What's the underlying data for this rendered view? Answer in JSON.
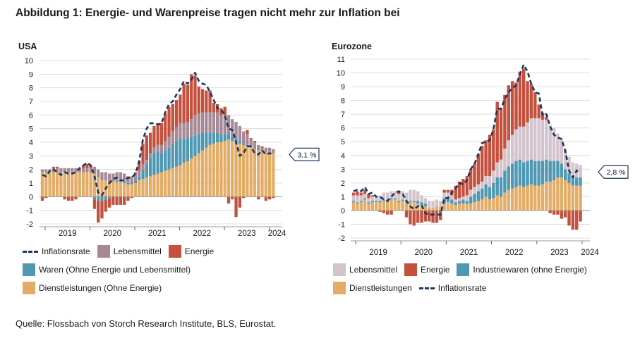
{
  "title": "Abbildung 1: Energie- und Warenpreise tragen nicht mehr zur Inflation bei",
  "source": "Quelle: Flossbach von Storch Research Institute, BLS, Eurostat.",
  "colors": {
    "food": "#a58a96",
    "food_ez": "#d3c3cc",
    "energy": "#c4513e",
    "goods": "#4f98b3",
    "services": "#e3ad67",
    "line": "#1c355e"
  },
  "chart_data": [
    {
      "id": "usa",
      "type": "bar",
      "title": "USA",
      "stacked": true,
      "ylim": [
        -2,
        10
      ],
      "yticks": [
        "-2",
        "-1",
        "0",
        "1",
        "2",
        "3",
        "4",
        "5",
        "6",
        "7",
        "8",
        "9",
        "10"
      ],
      "xticks": [
        "2019",
        "2020",
        "2021",
        "2022",
        "2023",
        "2024"
      ],
      "start": "2019-01",
      "callout": "3,1 %",
      "series": [
        {
          "name": "Dienstleistungen (Ohne Energie)",
          "key": "services",
          "values": [
            1.8,
            1.8,
            1.8,
            1.8,
            1.8,
            1.8,
            1.8,
            1.8,
            1.8,
            1.8,
            1.8,
            1.8,
            1.8,
            1.8,
            1.7,
            1.4,
            1.2,
            1.2,
            1.1,
            1.1,
            1.1,
            1.1,
            1.0,
            0.9,
            0.9,
            1.0,
            1.2,
            1.3,
            1.4,
            1.5,
            1.6,
            1.7,
            1.8,
            1.9,
            2.0,
            2.1,
            2.2,
            2.3,
            2.5,
            2.6,
            2.8,
            3.0,
            3.2,
            3.4,
            3.6,
            3.8,
            3.9,
            4.0,
            4.0,
            4.1,
            4.2,
            4.1,
            4.0,
            3.9,
            3.8,
            3.7,
            3.6,
            3.5,
            3.4,
            3.3,
            3.3,
            3.3,
            3.2
          ]
        },
        {
          "name": "Waren (Ohne Energie und Lebensmittel)",
          "key": "goods",
          "values": [
            0.0,
            0.0,
            0.0,
            0.0,
            0.0,
            0.0,
            0.0,
            0.0,
            0.0,
            0.0,
            0.0,
            0.0,
            0.0,
            0.0,
            -0.2,
            -0.3,
            -0.3,
            -0.2,
            -0.1,
            0.0,
            0.1,
            0.1,
            0.1,
            0.1,
            0.1,
            0.2,
            0.3,
            0.7,
            1.0,
            1.4,
            1.6,
            1.6,
            1.4,
            1.5,
            1.6,
            1.8,
            1.9,
            2.0,
            1.8,
            1.7,
            1.6,
            1.5,
            1.4,
            1.3,
            1.1,
            0.9,
            0.8,
            0.7,
            0.6,
            0.5,
            0.4,
            0.3,
            0.3,
            0.2,
            0.1,
            0.1,
            0.0,
            0.0,
            0.0,
            0.0,
            0.0,
            0.0,
            0.0
          ]
        },
        {
          "name": "Lebensmittel",
          "key": "food",
          "values": [
            0.2,
            0.2,
            0.2,
            0.3,
            0.3,
            0.3,
            0.3,
            0.3,
            0.3,
            0.3,
            0.3,
            0.3,
            0.3,
            0.3,
            0.5,
            0.6,
            0.6,
            0.6,
            0.6,
            0.6,
            0.6,
            0.6,
            0.6,
            0.5,
            0.5,
            0.5,
            0.5,
            0.4,
            0.3,
            0.3,
            0.4,
            0.5,
            0.6,
            0.7,
            0.8,
            0.9,
            1.0,
            1.1,
            1.1,
            1.2,
            1.3,
            1.5,
            1.5,
            1.5,
            1.5,
            1.5,
            1.5,
            1.5,
            1.4,
            1.4,
            1.4,
            1.3,
            1.2,
            1.1,
            0.9,
            0.8,
            0.6,
            0.5,
            0.4,
            0.3,
            0.3,
            0.3,
            0.3
          ]
        },
        {
          "name": "Energie",
          "key": "energy",
          "values": [
            -0.3,
            -0.1,
            0.0,
            0.1,
            0.1,
            0.0,
            -0.2,
            -0.3,
            -0.3,
            -0.2,
            0.0,
            0.2,
            0.3,
            0.2,
            -0.7,
            -1.6,
            -1.3,
            -0.9,
            -0.7,
            -0.6,
            -0.6,
            -0.6,
            -0.6,
            -0.3,
            -0.1,
            0.1,
            0.6,
            1.5,
            1.8,
            1.5,
            1.6,
            1.6,
            1.6,
            2.0,
            2.2,
            2.0,
            2.0,
            2.1,
            2.9,
            2.7,
            3.3,
            2.9,
            2.0,
            1.7,
            1.6,
            1.6,
            0.7,
            0.6,
            0.5,
            0.6,
            -0.5,
            -0.2,
            -1.5,
            -0.8,
            -0.1,
            0.3,
            0.1,
            0.1,
            -0.2,
            0.1,
            -0.3,
            -0.2,
            -0.1
          ]
        }
      ],
      "line": {
        "name": "Inflationsrate",
        "key": "line",
        "values": [
          1.6,
          1.5,
          1.9,
          2.0,
          1.8,
          1.6,
          1.8,
          1.7,
          1.7,
          1.8,
          2.1,
          2.3,
          2.5,
          2.3,
          1.5,
          0.3,
          0.1,
          0.6,
          1.0,
          1.3,
          1.4,
          1.2,
          1.2,
          1.4,
          1.4,
          1.7,
          2.6,
          4.2,
          5.0,
          5.4,
          5.4,
          5.3,
          5.4,
          6.2,
          6.8,
          7.0,
          7.5,
          7.9,
          8.5,
          8.3,
          8.6,
          9.1,
          8.5,
          8.3,
          8.2,
          7.7,
          7.1,
          6.5,
          6.4,
          6.0,
          5.0,
          4.9,
          4.0,
          3.0,
          3.2,
          3.7,
          3.7,
          3.2,
          3.1,
          3.4,
          3.1,
          3.2,
          3.1
        ]
      },
      "legend": [
        [
          {
            "key": "line",
            "label": "Inflationsrate"
          },
          {
            "key": "food",
            "label": "Lebensmittel"
          },
          {
            "key": "energy",
            "label": "Energie"
          }
        ],
        [
          {
            "key": "goods",
            "label": "Waren (Ohne Energie und Lebensmittel)"
          }
        ],
        [
          {
            "key": "services",
            "label": "Dienstleistungen (Ohne Energie)"
          }
        ]
      ]
    },
    {
      "id": "ez",
      "type": "bar",
      "title": "Eurozone",
      "stacked": true,
      "ylim": [
        -2,
        11
      ],
      "yticks": [
        "-2",
        "-1",
        "0",
        "1",
        "2",
        "3",
        "4",
        "5",
        "6",
        "7",
        "8",
        "9",
        "10",
        "11"
      ],
      "xticks": [
        "2019",
        "2020",
        "2021",
        "2022",
        "2023",
        "2024"
      ],
      "start": "2019-01",
      "callout": "2,8 %",
      "series": [
        {
          "name": "Dienstleistungen",
          "key": "services",
          "values": [
            0.6,
            0.5,
            0.6,
            0.8,
            0.5,
            0.6,
            0.6,
            0.6,
            0.7,
            0.6,
            0.8,
            0.8,
            0.6,
            0.7,
            0.6,
            0.6,
            0.6,
            0.5,
            0.4,
            0.3,
            0.2,
            0.2,
            0.3,
            0.3,
            0.5,
            0.6,
            0.5,
            0.4,
            0.5,
            0.5,
            0.5,
            0.5,
            0.6,
            0.7,
            0.8,
            1.0,
            0.8,
            0.9,
            1.1,
            1.0,
            1.3,
            1.5,
            1.6,
            1.7,
            1.8,
            1.7,
            1.8,
            1.9,
            1.8,
            1.8,
            1.9,
            2.1,
            2.1,
            2.2,
            2.4,
            2.4,
            2.2,
            2.0,
            1.8,
            1.8,
            1.8
          ]
        },
        {
          "name": "Industriewaren (ohne Energie)",
          "key": "goods",
          "values": [
            0.1,
            0.1,
            0.1,
            0.1,
            0.1,
            0.1,
            0.1,
            0.1,
            0.1,
            0.1,
            0.1,
            0.1,
            0.1,
            0.1,
            0.1,
            0.1,
            0.1,
            0.2,
            0.2,
            0.2,
            0.0,
            0.0,
            0.0,
            0.0,
            0.4,
            0.4,
            0.3,
            0.2,
            0.2,
            0.3,
            0.2,
            0.5,
            0.6,
            0.7,
            0.8,
            0.9,
            0.9,
            1.1,
            1.3,
            1.4,
            1.6,
            1.7,
            1.8,
            1.9,
            1.9,
            1.8,
            1.8,
            1.8,
            1.8,
            1.8,
            1.7,
            1.6,
            1.5,
            1.4,
            1.2,
            1.0,
            0.8,
            0.7,
            0.6,
            0.6,
            0.6
          ]
        },
        {
          "name": "Lebensmittel",
          "key": "food",
          "values": [
            0.4,
            0.5,
            0.4,
            0.3,
            0.3,
            0.3,
            0.4,
            0.4,
            0.5,
            0.6,
            0.5,
            0.5,
            0.5,
            0.6,
            0.6,
            0.8,
            0.8,
            0.7,
            0.5,
            0.4,
            0.5,
            0.5,
            0.5,
            0.4,
            0.4,
            0.3,
            0.3,
            0.2,
            0.2,
            0.2,
            0.4,
            0.5,
            0.5,
            0.5,
            0.5,
            0.6,
            0.8,
            0.9,
            1.1,
            1.3,
            1.6,
            1.9,
            2.1,
            2.3,
            2.4,
            2.6,
            2.8,
            3.0,
            3.1,
            3.1,
            3.0,
            2.9,
            2.6,
            2.4,
            2.0,
            1.8,
            1.5,
            1.2,
            1.1,
            1.0,
            0.9
          ]
        },
        {
          "name": "Energie",
          "key": "energy",
          "values": [
            0.2,
            0.3,
            0.2,
            0.3,
            0.3,
            0.1,
            0.0,
            -0.1,
            -0.2,
            -0.3,
            -0.3,
            0.0,
            0.2,
            0.0,
            -0.5,
            -1.0,
            -1.1,
            -0.9,
            -0.9,
            -0.8,
            -0.8,
            -0.9,
            -0.9,
            -0.7,
            0.2,
            0.2,
            0.4,
            1.0,
            1.2,
            1.3,
            1.4,
            1.5,
            1.7,
            2.2,
            2.6,
            2.6,
            3.0,
            3.0,
            4.4,
            3.7,
            3.9,
            4.0,
            3.9,
            3.4,
            4.0,
            4.2,
            3.0,
            2.5,
            1.9,
            1.0,
            0.5,
            0.2,
            -0.2,
            -0.3,
            -0.3,
            -0.6,
            -0.5,
            -1.1,
            -1.4,
            -1.4,
            -0.8
          ]
        }
      ],
      "line": {
        "name": "Inflationsrate",
        "key": "line",
        "values": [
          1.4,
          1.5,
          1.4,
          1.7,
          1.2,
          1.3,
          1.0,
          1.0,
          0.8,
          0.7,
          1.0,
          1.3,
          1.4,
          1.2,
          0.7,
          0.3,
          0.1,
          0.3,
          0.4,
          -0.2,
          -0.3,
          -0.3,
          -0.3,
          -0.3,
          0.9,
          0.9,
          1.3,
          1.6,
          2.0,
          1.9,
          2.2,
          3.0,
          3.4,
          4.1,
          4.9,
          5.0,
          5.1,
          5.9,
          7.4,
          7.4,
          8.1,
          8.6,
          8.9,
          9.1,
          9.9,
          10.6,
          10.1,
          9.2,
          8.6,
          8.5,
          6.9,
          7.0,
          6.1,
          5.5,
          5.3,
          5.2,
          4.3,
          2.9,
          2.4,
          2.9,
          2.8
        ]
      },
      "legend": [
        [
          {
            "key": "food",
            "label": "Lebensmittel"
          },
          {
            "key": "energy",
            "label": "Energie"
          },
          {
            "key": "goods",
            "label": "Industriewaren (ohne Energie)"
          }
        ],
        [
          {
            "key": "services",
            "label": "Dienstleistungen"
          },
          {
            "key": "line",
            "label": "Inflationsrate"
          }
        ]
      ]
    }
  ]
}
